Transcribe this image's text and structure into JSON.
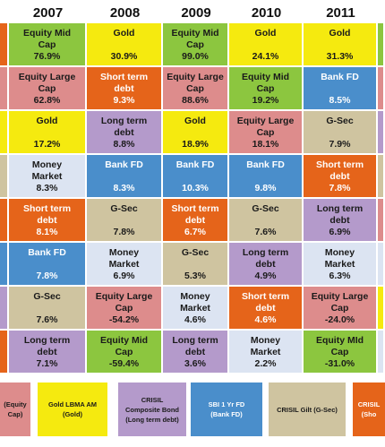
{
  "colors": {
    "Equity Mid Cap": "#8CC63F",
    "Equity Large Cap": "#DD8C8C",
    "Gold": "#F5EA0F",
    "Long term debt": "#B49ACB",
    "Bank FD": "#4A8ECB",
    "G-Sec": "#CFC4A0",
    "Money Market": "#DCE4F2",
    "Short term debt": "#E5641A"
  },
  "chart_data": {
    "type": "table",
    "title": "",
    "columns": [
      "2007",
      "2008",
      "2009",
      "2010",
      "2011"
    ],
    "rows": [
      [
        {
          "asset": "Equity Mid Cap",
          "label": "Equity Mid\nCap",
          "value": "76.9%"
        },
        {
          "asset": "Gold",
          "label": "Gold",
          "value": "30.9%"
        },
        {
          "asset": "Equity Mid Cap",
          "label": "Equity Mid\nCap",
          "value": "99.0%"
        },
        {
          "asset": "Gold",
          "label": "Gold",
          "value": "24.1%"
        },
        {
          "asset": "Gold",
          "label": "Gold",
          "value": "31.3%"
        }
      ],
      [
        {
          "asset": "Equity Large Cap",
          "label": "Equity Large\nCap",
          "value": "62.8%"
        },
        {
          "asset": "Short term debt",
          "label": "Short term\ndebt",
          "value": "9.3%"
        },
        {
          "asset": "Equity Large Cap",
          "label": "Equity Large\nCap",
          "value": "88.6%"
        },
        {
          "asset": "Equity Mid Cap",
          "label": "Equity Mid\nCap",
          "value": "19.2%"
        },
        {
          "asset": "Bank FD",
          "label": "Bank FD",
          "value": "8.5%"
        }
      ],
      [
        {
          "asset": "Gold",
          "label": "Gold",
          "value": "17.2%"
        },
        {
          "asset": "Long term debt",
          "label": "Long term\ndebt",
          "value": "8.8%"
        },
        {
          "asset": "Gold",
          "label": "Gold",
          "value": "18.9%"
        },
        {
          "asset": "Equity Large Cap",
          "label": "Equity Large\nCap",
          "value": "18.1%"
        },
        {
          "asset": "G-Sec",
          "label": "G-Sec",
          "value": "7.9%"
        }
      ],
      [
        {
          "asset": "Money Market",
          "label": "Money\nMarket",
          "value": "8.3%"
        },
        {
          "asset": "Bank FD",
          "label": "Bank FD",
          "value": "8.3%"
        },
        {
          "asset": "Bank FD",
          "label": "Bank FD",
          "value": "10.3%"
        },
        {
          "asset": "Bank FD",
          "label": "Bank FD",
          "value": "9.8%"
        },
        {
          "asset": "Short term debt",
          "label": "Short term\ndebt",
          "value": "7.8%"
        }
      ],
      [
        {
          "asset": "Short term debt",
          "label": "Short term\ndebt",
          "value": "8.1%"
        },
        {
          "asset": "G-Sec",
          "label": "G-Sec",
          "value": "7.8%"
        },
        {
          "asset": "Short term debt",
          "label": "Short term\ndebt",
          "value": "6.7%"
        },
        {
          "asset": "G-Sec",
          "label": "G-Sec",
          "value": "7.6%"
        },
        {
          "asset": "Long term debt",
          "label": "Long term\ndebt",
          "value": "6.9%"
        }
      ],
      [
        {
          "asset": "Bank FD",
          "label": "Bank FD",
          "value": "7.8%"
        },
        {
          "asset": "Money Market",
          "label": "Money\nMarket",
          "value": "6.9%"
        },
        {
          "asset": "G-Sec",
          "label": "G-Sec",
          "value": "5.3%"
        },
        {
          "asset": "Long term debt",
          "label": "Long term\ndebt",
          "value": "4.9%"
        },
        {
          "asset": "Money Market",
          "label": "Money\nMarket",
          "value": "6.3%"
        }
      ],
      [
        {
          "asset": "G-Sec",
          "label": "G-Sec",
          "value": "7.6%"
        },
        {
          "asset": "Equity Large Cap",
          "label": "Equity Large\nCap",
          "value": "-54.2%"
        },
        {
          "asset": "Money Market",
          "label": "Money\nMarket",
          "value": "4.6%"
        },
        {
          "asset": "Short term debt",
          "label": "Short term\ndebt",
          "value": "4.6%"
        },
        {
          "asset": "Equity Large Cap",
          "label": "Equity Large\nCap",
          "value": "-24.0%"
        }
      ],
      [
        {
          "asset": "Long term debt",
          "label": "Long term\ndebt",
          "value": "7.1%"
        },
        {
          "asset": "Equity Mid Cap",
          "label": "Equity Mid\nCap",
          "value": "-59.4%"
        },
        {
          "asset": "Long term debt",
          "label": "Long term\ndebt",
          "value": "3.6%"
        },
        {
          "asset": "Money Market",
          "label": "Money\nMarket",
          "value": "2.2%"
        },
        {
          "asset": "Equity Mid Cap",
          "label": "Equity MId\nCap",
          "value": "-31.0%"
        }
      ]
    ],
    "left_edge_colors": [
      "#E5641A",
      "#DD8C8C",
      "#F5EA0F",
      "#CFC4A0",
      "#E5641A",
      "#4A8ECB",
      "#B49ACB",
      "#E5641A"
    ],
    "right_edge_colors": [
      "#8CC63F",
      "#DD8C8C",
      "#B49ACB",
      "#CFC4A0",
      "#DD8C8C",
      "#DCE4F2",
      "#F5EA0F",
      "#DCE4F2"
    ],
    "legend": [
      {
        "label": "(Equity\nCap)",
        "color": "#DD8C8C"
      },
      {
        "label": "Gold LBMA AM\n(Gold)",
        "color": "#F5EA0F"
      },
      {
        "label": "CRISIL\nComposite Bond\n(Long term debt)",
        "color": "#B49ACB"
      },
      {
        "label": "SBI 1 Yr FD\n(Bank FD)",
        "color": "#4A8ECB"
      },
      {
        "label": "CRISIL Gilt (G-Sec)",
        "color": "#CFC4A0"
      },
      {
        "label": "CRISIL\n(Sho",
        "color": "#E5641A"
      }
    ]
  }
}
